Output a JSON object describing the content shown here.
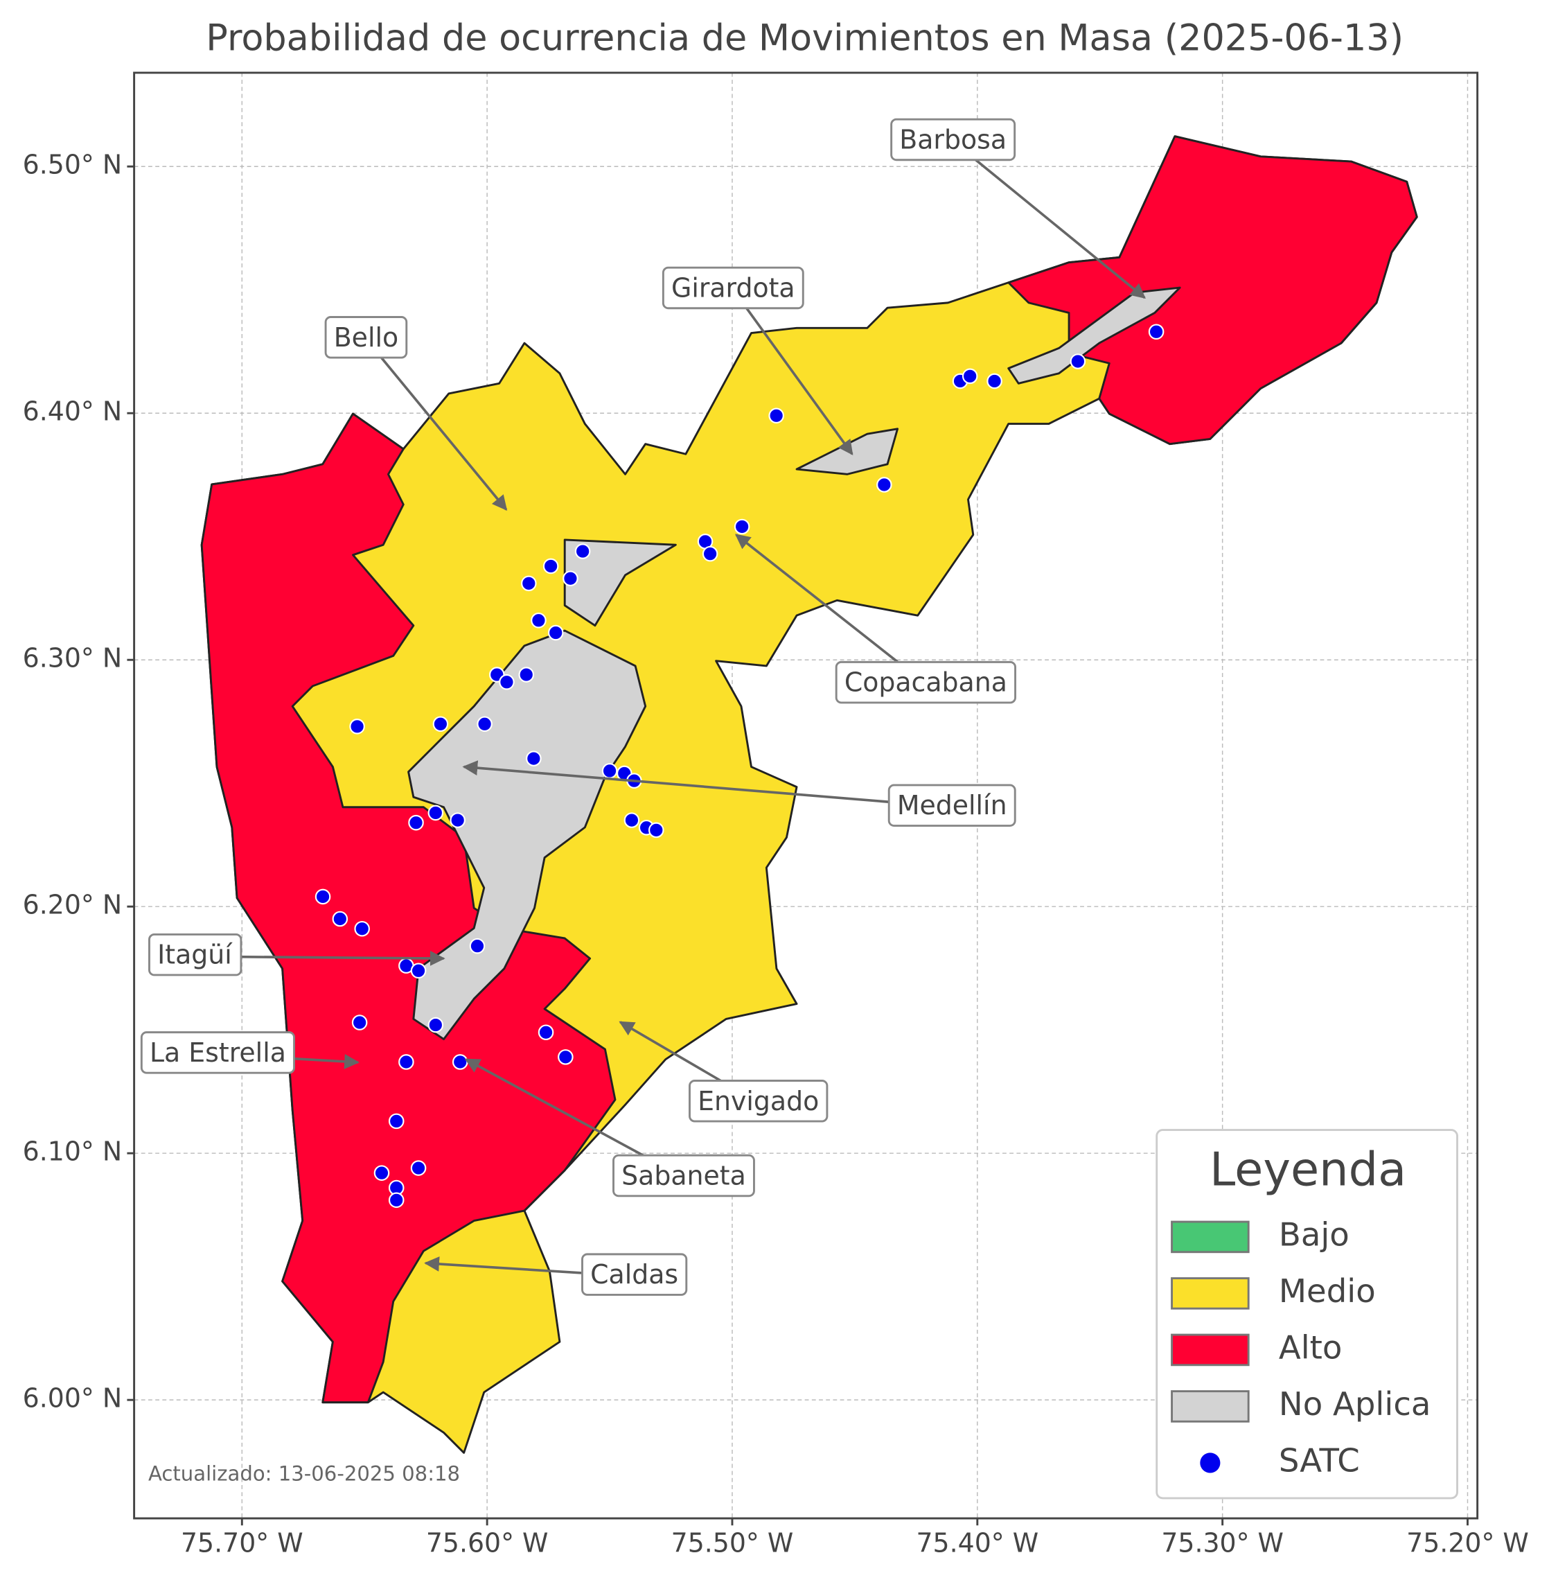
{
  "map": {
    "type": "map",
    "title": "Probabilidad de ocurrencia de Movimientos en Masa (2025-06-13)",
    "xlim": [
      -75.744,
      -75.196
    ],
    "ylim": [
      5.952,
      6.538
    ],
    "xticks": [
      {
        "value": -75.7,
        "label": "75.70° W"
      },
      {
        "value": -75.6,
        "label": "75.60° W"
      },
      {
        "value": -75.5,
        "label": "75.50° W"
      },
      {
        "value": -75.4,
        "label": "75.40° W"
      },
      {
        "value": -75.3,
        "label": "75.30° W"
      },
      {
        "value": -75.2,
        "label": "75.20° W"
      }
    ],
    "yticks": [
      {
        "value": 6.0,
        "label": "6.00° N"
      },
      {
        "value": 6.1,
        "label": "6.10° N"
      },
      {
        "value": 6.2,
        "label": "6.20° N"
      },
      {
        "value": 6.3,
        "label": "6.30° N"
      },
      {
        "value": 6.4,
        "label": "6.40° N"
      },
      {
        "value": 6.5,
        "label": "6.50° N"
      }
    ],
    "grid": true,
    "annotations": [
      "Barbosa",
      "Girardota",
      "Bello",
      "Copacabana",
      "Medellín",
      "Itagüí",
      "La Estrella",
      "Envigado",
      "Sabaneta",
      "Caldas"
    ],
    "legend": {
      "title": "Leyenda",
      "position": "lower right",
      "entries": [
        {
          "name": "Bajo",
          "color": "#48c774"
        },
        {
          "name": "Medio",
          "color": "#fbe02a"
        },
        {
          "name": "Alto",
          "color": "#ff0033"
        },
        {
          "name": "No Aplica",
          "color": "#d3d3d3"
        }
      ]
    },
    "satc": {
      "name": "SATC",
      "color": "#0000ee",
      "x": [
        -75.327,
        -75.359,
        -75.407,
        -75.403,
        -75.393,
        -75.482,
        -75.438,
        -75.496,
        -75.511,
        -75.509,
        -75.561,
        -75.574,
        -75.566,
        -75.583,
        -75.579,
        -75.572,
        -75.596,
        -75.592,
        -75.584,
        -75.653,
        -75.619,
        -75.601,
        -75.581,
        -75.55,
        -75.544,
        -75.54,
        -75.541,
        -75.535,
        -75.531,
        -75.621,
        -75.629,
        -75.612,
        -75.667,
        -75.66,
        -75.651,
        -75.604,
        -75.633,
        -75.628,
        -75.652,
        -75.621,
        -75.576,
        -75.568,
        -75.633,
        -75.611,
        -75.637,
        -75.643,
        -75.628,
        -75.637,
        -75.637
      ],
      "y": [
        6.433,
        6.421,
        6.413,
        6.415,
        6.413,
        6.399,
        6.371,
        6.354,
        6.348,
        6.343,
        6.344,
        6.338,
        6.333,
        6.331,
        6.316,
        6.311,
        6.294,
        6.291,
        6.294,
        6.273,
        6.274,
        6.274,
        6.26,
        6.255,
        6.254,
        6.251,
        6.235,
        6.232,
        6.231,
        6.238,
        6.234,
        6.235,
        6.204,
        6.195,
        6.191,
        6.184,
        6.176,
        6.174,
        6.153,
        6.152,
        6.149,
        6.139,
        6.137,
        6.137,
        6.113,
        6.092,
        6.094,
        6.086,
        6.081
      ]
    },
    "footnote": "Actualizado: 13-06-2025 08:18"
  }
}
